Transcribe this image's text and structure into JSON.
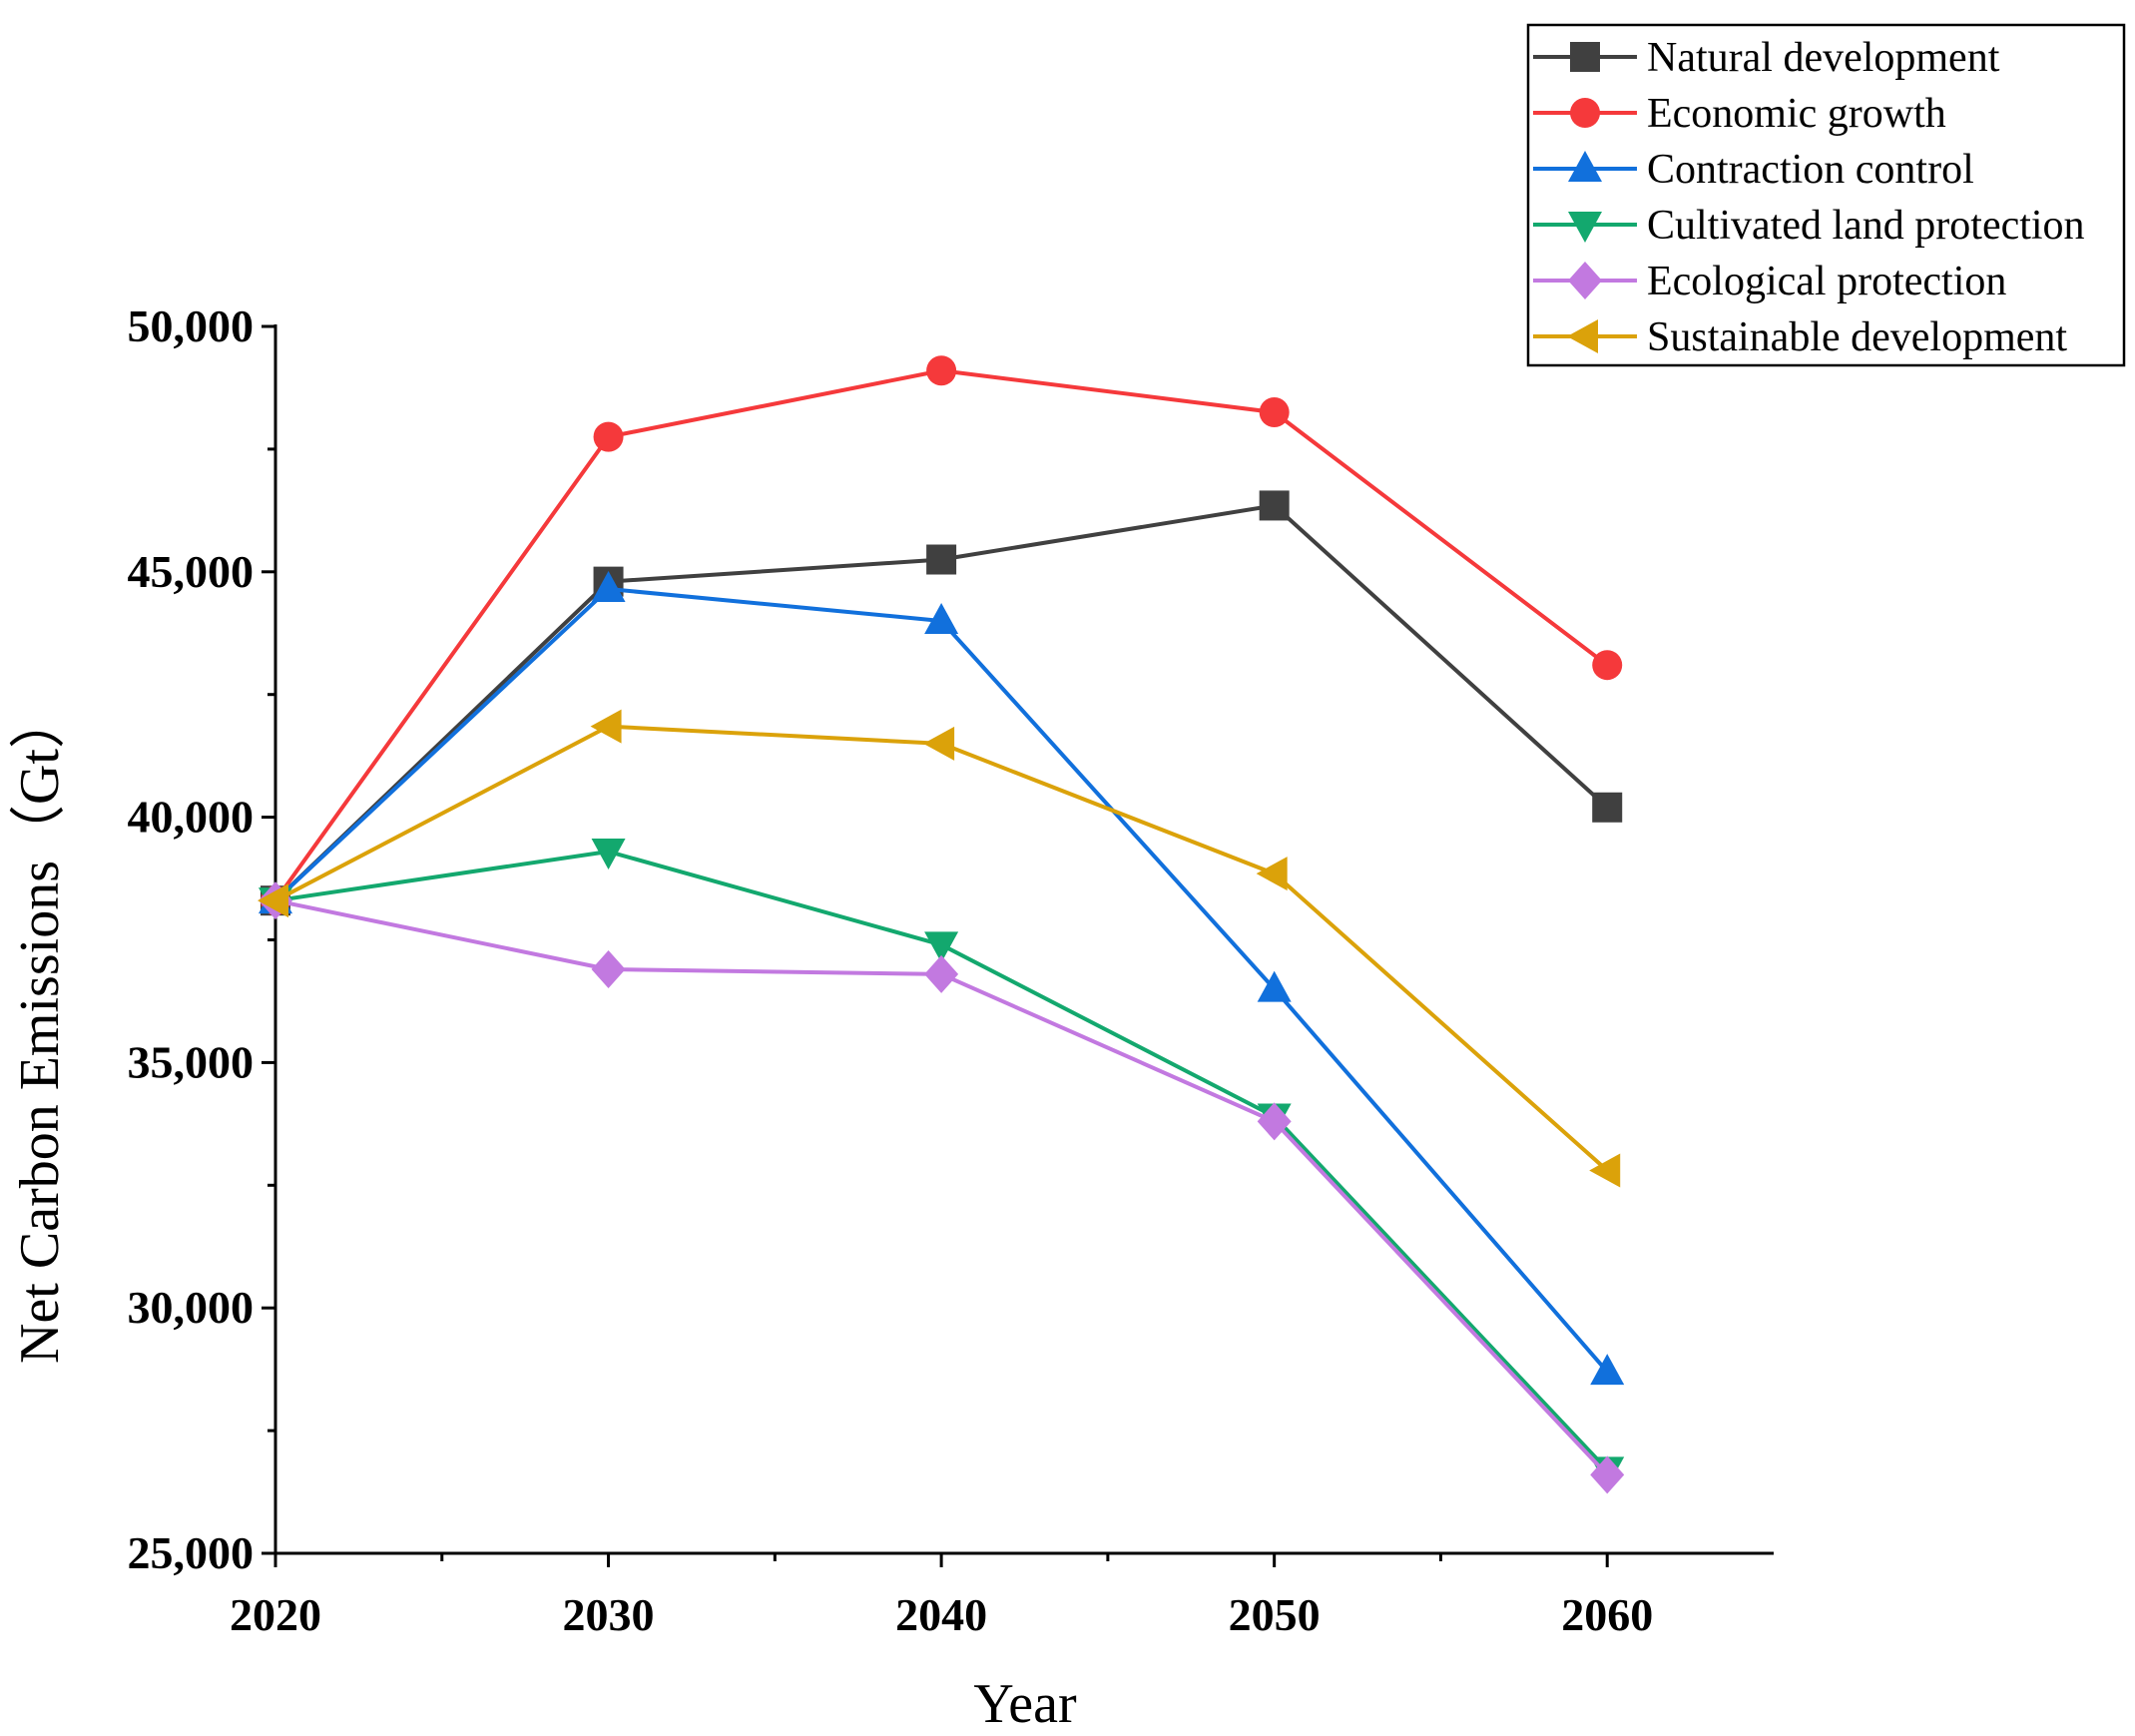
{
  "chart_data": {
    "type": "line",
    "title": "",
    "xlabel": "Year",
    "ylabel": "Net Carbon Emissions（Gt）",
    "x": [
      2020,
      2030,
      2040,
      2050,
      2060
    ],
    "xlim": [
      2020,
      2065
    ],
    "ylim": [
      25000,
      50000
    ],
    "x_ticks": [
      "2020",
      "2030",
      "2040",
      "2050",
      "2060"
    ],
    "y_ticks": [
      "25,000",
      "30,000",
      "35,000",
      "40,000",
      "45,000",
      "50,000"
    ],
    "y_tick_values": [
      25000,
      30000,
      35000,
      40000,
      45000,
      50000
    ],
    "grid": false,
    "legend_position": "top-right",
    "series": [
      {
        "name": "Natural development",
        "color": "#404040",
        "marker": "square",
        "values": [
          38300,
          44800,
          45250,
          46350,
          40200
        ]
      },
      {
        "name": "Economic growth",
        "color": "#f5393b",
        "marker": "circle",
        "values": [
          38300,
          47750,
          49100,
          48250,
          43100
        ]
      },
      {
        "name": "Contraction control",
        "color": "#1170dc",
        "marker": "triangle-up",
        "values": [
          38300,
          44650,
          44000,
          36500,
          28700
        ]
      },
      {
        "name": "Cultivated land protection",
        "color": "#13a86e",
        "marker": "triangle-down",
        "values": [
          38300,
          39300,
          37400,
          33900,
          26700
        ]
      },
      {
        "name": "Ecological protection",
        "color": "#c279e0",
        "marker": "diamond",
        "values": [
          38300,
          36900,
          36800,
          33800,
          26600
        ]
      },
      {
        "name": "Sustainable development",
        "color": "#dba20a",
        "marker": "triangle-left",
        "values": [
          38300,
          41850,
          41500,
          38850,
          32800
        ]
      }
    ]
  }
}
